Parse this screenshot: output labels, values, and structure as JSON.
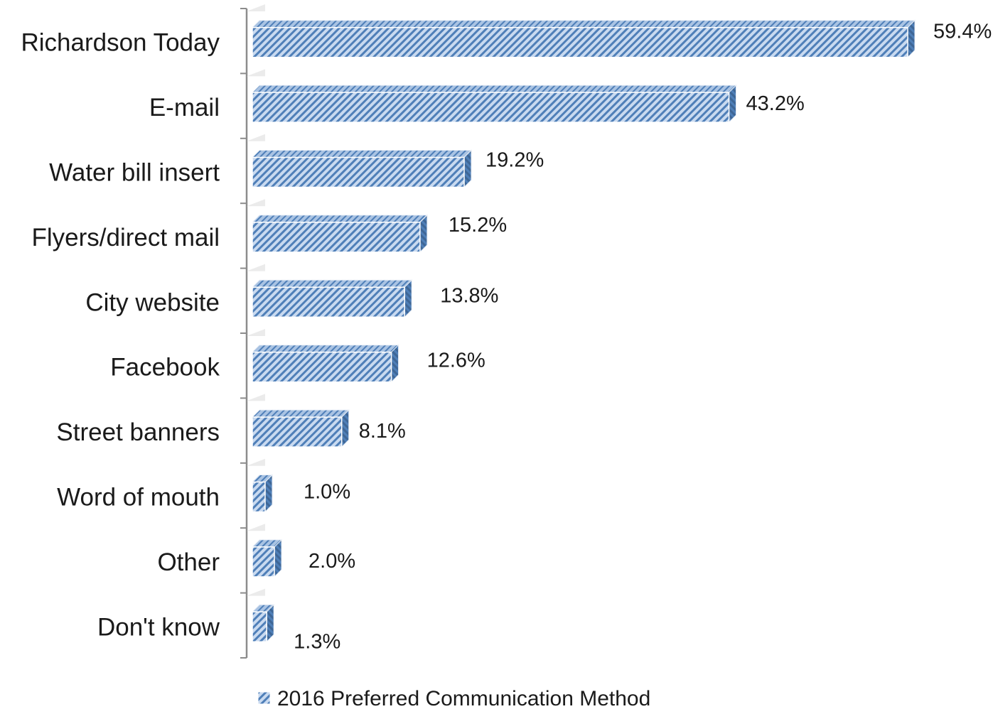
{
  "chart_data": {
    "type": "bar",
    "orientation": "horizontal",
    "categories": [
      "Richardson Today",
      "E-mail",
      "Water bill insert",
      "Flyers/direct mail",
      "City website",
      "Facebook",
      "Street banners",
      "Word of mouth",
      "Other",
      "Don't know"
    ],
    "series": [
      {
        "name": "2016 Preferred Communication Method",
        "values": [
          59.4,
          43.2,
          19.2,
          15.2,
          13.8,
          12.6,
          8.1,
          1.0,
          2.0,
          1.3
        ],
        "labels": [
          "59.4%",
          "43.2%",
          "19.2%",
          "15.2%",
          "13.8%",
          "12.6%",
          "8.1%",
          "1.0%",
          "2.0%",
          "1.3%"
        ]
      }
    ],
    "xlim": [
      0,
      60
    ],
    "grid": false,
    "legend_position": "bottom",
    "style": "3d-hatched",
    "colors": {
      "bar_fill": "#c9daf0",
      "bar_hatch": "#4f7fb8",
      "bar_top": "#a9c3e3",
      "bar_side": "#3f6796",
      "axis": "#8c8c8c",
      "text": "#1a1a1a"
    }
  }
}
